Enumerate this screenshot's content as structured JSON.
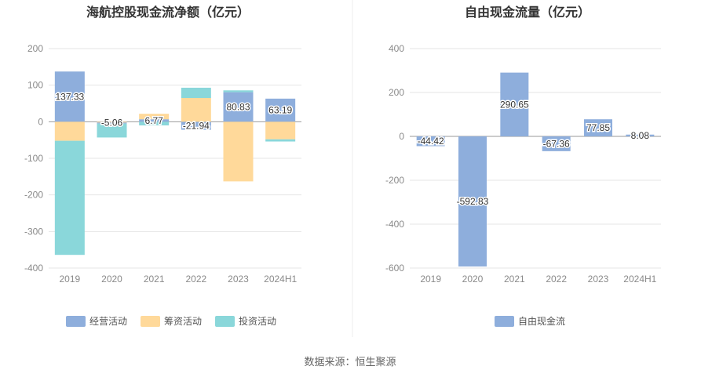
{
  "source": "数据来源：恒生聚源",
  "colors": {
    "operating": "#8eaedc",
    "financing": "#ffd99a",
    "investing": "#8ad7da",
    "free_cf": "#8eaedc",
    "grid": "#e6e6e6",
    "zero": "#999999"
  },
  "chart_data": [
    {
      "type": "bar",
      "stacked": true,
      "title": "海航控股现金流净额（亿元）",
      "categories": [
        "2019",
        "2020",
        "2021",
        "2022",
        "2023",
        "2024H1"
      ],
      "ylim": [
        -400,
        200
      ],
      "yticks": [
        200,
        100,
        0,
        -100,
        -200,
        -300,
        -400
      ],
      "grid": true,
      "legend_position": "bottom",
      "series": [
        {
          "name": "经营活动",
          "color_key": "operating",
          "values": [
            137.33,
            -5.06,
            6.77,
            -21.94,
            80.83,
            63.19
          ],
          "show_labels": true
        },
        {
          "name": "筹资活动",
          "color_key": "financing",
          "values": [
            -52,
            0,
            15,
            65,
            -163,
            -48
          ],
          "show_labels": false
        },
        {
          "name": "投资活动",
          "color_key": "investing",
          "values": [
            -312,
            -38,
            -10,
            28,
            5,
            -6
          ],
          "show_labels": false
        }
      ]
    },
    {
      "type": "bar",
      "title": "自由现金流量（亿元）",
      "categories": [
        "2019",
        "2020",
        "2021",
        "2022",
        "2023",
        "2024H1"
      ],
      "ylim": [
        -600,
        400
      ],
      "yticks": [
        400,
        200,
        0,
        -200,
        -400,
        -600
      ],
      "grid": true,
      "legend_position": "bottom",
      "series": [
        {
          "name": "自由现金流",
          "color_key": "free_cf",
          "values": [
            -44.42,
            -592.83,
            290.65,
            -67.36,
            77.85,
            8.08
          ],
          "show_labels": true
        }
      ]
    }
  ]
}
